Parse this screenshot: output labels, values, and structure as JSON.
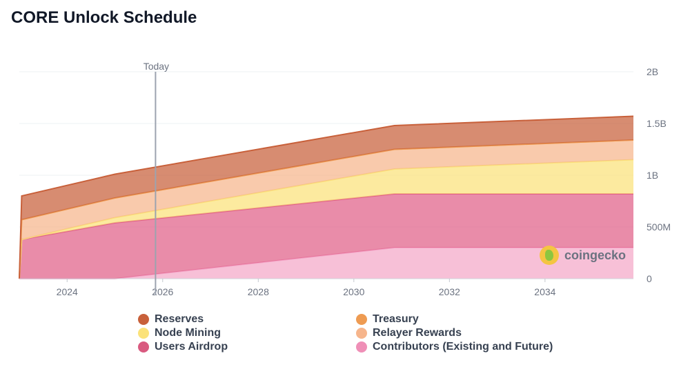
{
  "title": "CORE Unlock Schedule",
  "watermark": "coingecko",
  "chart_data": {
    "type": "area",
    "stacked": true,
    "title": "CORE Unlock Schedule",
    "x_unit": "year",
    "xlim": [
      2023.0,
      2035.85
    ],
    "ylim": [
      0,
      2000000000
    ],
    "x_ticks": [
      2024,
      2026,
      2028,
      2030,
      2032,
      2034
    ],
    "x_tick_labels": [
      "2024",
      "2026",
      "2028",
      "2030",
      "2032",
      "2034"
    ],
    "y_ticks": [
      0,
      500000000,
      1000000000,
      1500000000,
      2000000000
    ],
    "y_tick_labels": [
      "0",
      "500M",
      "1B",
      "1.5B",
      "2B"
    ],
    "y_axis_side": "right",
    "grid": true,
    "today_marker": {
      "x": 2025.85,
      "label": "Today"
    },
    "x": [
      2023.0,
      2023.05,
      2025.0,
      2030.85,
      2035.85
    ],
    "series": [
      {
        "name": "Contributors (Existing and Future)",
        "color": "#f4a7c8",
        "values": [
          0,
          0,
          0,
          300000000,
          300000000
        ]
      },
      {
        "name": "Users Airdrop",
        "color": "#e05f88",
        "values": [
          0,
          380000000,
          540000000,
          520000000,
          520000000
        ]
      },
      {
        "name": "Node Mining",
        "color": "#fbe27a",
        "values": [
          0,
          0,
          50000000,
          240000000,
          330000000
        ]
      },
      {
        "name": "Relayer Rewards",
        "color": "#f6b58c",
        "values": [
          0,
          190000000,
          190000000,
          190000000,
          190000000
        ]
      },
      {
        "name": "Treasury",
        "color": "#ee9b52",
        "values": [
          0,
          0,
          0,
          0,
          0
        ]
      },
      {
        "name": "Reserves",
        "color": "#c8603a",
        "values": [
          0,
          230000000,
          230000000,
          230000000,
          230000000
        ]
      }
    ]
  },
  "legend": [
    {
      "label": "Reserves",
      "color": "#c8603a"
    },
    {
      "label": "Treasury",
      "color": "#ee9b52"
    },
    {
      "label": "Node Mining",
      "color": "#fbe27a"
    },
    {
      "label": "Relayer Rewards",
      "color": "#f6b58c"
    },
    {
      "label": "Users Airdrop",
      "color": "#d95a80"
    },
    {
      "label": "Contributors (Existing and Future)",
      "color": "#ef8fb7"
    }
  ]
}
